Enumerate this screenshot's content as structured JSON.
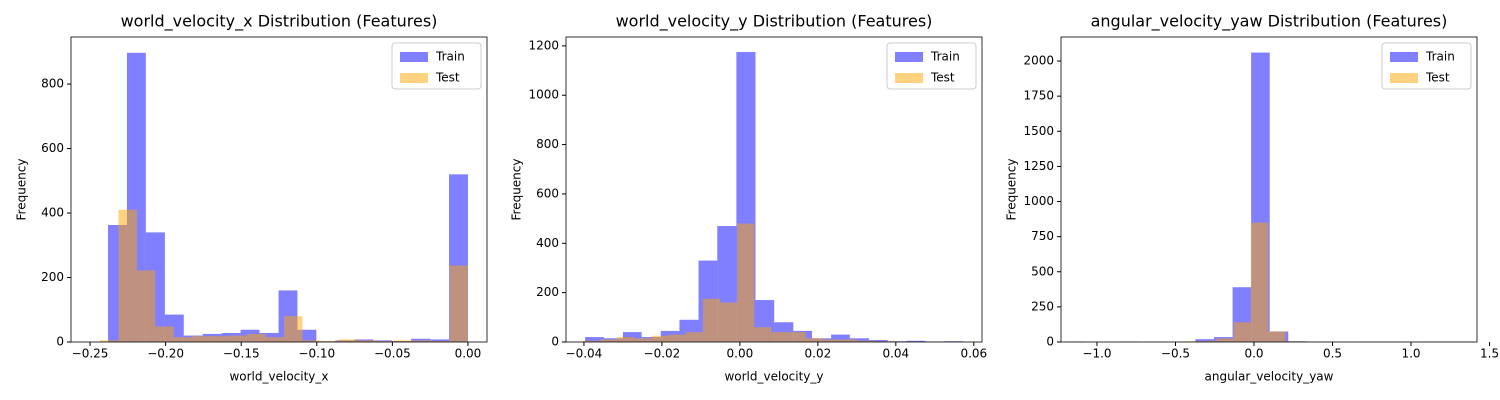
{
  "chart_data": [
    {
      "type": "histogram",
      "title": "world_velocity_x Distribution (Features)",
      "xlabel": "world_velocity_x",
      "ylabel": "Frequency",
      "xlim": [
        -0.2626,
        0.0126
      ],
      "ylim": [
        0,
        946
      ],
      "xticks": [
        {
          "value": -0.25,
          "label": "−0.25"
        },
        {
          "value": -0.2,
          "label": "−0.20"
        },
        {
          "value": -0.15,
          "label": "−0.15"
        },
        {
          "value": -0.1,
          "label": "−0.10"
        },
        {
          "value": -0.05,
          "label": "−0.05"
        },
        {
          "value": 0,
          "label": "0.00"
        }
      ],
      "yticks": [
        0,
        200,
        400,
        600,
        800
      ],
      "legend": "upper right",
      "alpha": 0.5,
      "series": [
        {
          "name": "Train",
          "color": "#0000ff",
          "bins": [
            -0.2381,
            -0.2256,
            -0.2131,
            -0.2005,
            -0.188,
            -0.1755,
            -0.1629,
            -0.1504,
            -0.1379,
            -0.1253,
            -0.1128,
            -0.1003,
            -0.0877,
            -0.0752,
            -0.0627,
            -0.0501,
            -0.0376,
            -0.0251,
            -0.0125,
            0.0
          ],
          "values": [
            363,
            897,
            340,
            85,
            20,
            25,
            28,
            38,
            28,
            160,
            38,
            2,
            5,
            8,
            5,
            3,
            10,
            8,
            520
          ]
        },
        {
          "name": "Test",
          "color": "#ffa500",
          "bins": [
            -0.2434,
            -0.2312,
            -0.219,
            -0.2069,
            -0.1947,
            -0.1825,
            -0.1704,
            -0.1582,
            -0.146,
            -0.1339,
            -0.1217,
            -0.1095,
            -0.0974,
            -0.0852,
            -0.073,
            -0.0609,
            -0.0487,
            -0.0365,
            -0.0243,
            -0.0122,
            0.0
          ],
          "values": [
            5,
            410,
            222,
            48,
            15,
            18,
            18,
            20,
            25,
            15,
            80,
            5,
            3,
            8,
            5,
            3,
            5,
            5,
            3,
            237
          ]
        }
      ]
    },
    {
      "type": "histogram",
      "title": "world_velocity_y Distribution (Features)",
      "xlabel": "world_velocity_y",
      "ylabel": "Frequency",
      "xlim": [
        -0.0446,
        0.0621
      ],
      "ylim": [
        0,
        1236
      ],
      "xticks": [
        {
          "value": -0.04,
          "label": "−0.04"
        },
        {
          "value": -0.02,
          "label": "−0.02"
        },
        {
          "value": 0,
          "label": "0.00"
        },
        {
          "value": 0.02,
          "label": "0.02"
        },
        {
          "value": 0.04,
          "label": "0.04"
        },
        {
          "value": 0.06,
          "label": "0.06"
        }
      ],
      "yticks": [
        0,
        200,
        400,
        600,
        800,
        1000,
        1200
      ],
      "legend": "upper right",
      "alpha": 0.5,
      "series": [
        {
          "name": "Train",
          "color": "#0000ff",
          "bins": [
            -0.0397,
            -0.0349,
            -0.03,
            -0.0252,
            -0.0203,
            -0.0155,
            -0.0106,
            -0.0058,
            -0.0009,
            0.004,
            0.0088,
            0.0137,
            0.0185,
            0.0234,
            0.0282,
            0.0331,
            0.0379,
            0.0428,
            0.0476,
            0.0525,
            0.0573
          ],
          "values": [
            20,
            15,
            40,
            20,
            45,
            90,
            330,
            470,
            1175,
            170,
            80,
            45,
            15,
            30,
            15,
            8,
            3,
            5,
            2,
            3
          ]
        },
        {
          "name": "Test",
          "color": "#ffa500",
          "bins": [
            -0.0403,
            -0.0359,
            -0.0315,
            -0.0271,
            -0.0227,
            -0.0183,
            -0.0139,
            -0.0095,
            -0.0051,
            -0.0007,
            0.0037,
            0.0081,
            0.0125,
            0.0169,
            0.0213,
            0.0257,
            0.0301,
            0.0345,
            0.0389,
            0.0433,
            0.0477
          ],
          "values": [
            5,
            10,
            20,
            15,
            25,
            30,
            40,
            175,
            160,
            480,
            60,
            40,
            40,
            15,
            10,
            10,
            5,
            3,
            2,
            1
          ]
        }
      ]
    },
    {
      "type": "histogram",
      "title": "angular_velocity_yaw Distribution (Features)",
      "xlabel": "angular_velocity_yaw",
      "ylabel": "Frequency",
      "xlim": [
        -1.229,
        1.42
      ],
      "ylim": [
        0,
        2171
      ],
      "xticks": [
        {
          "value": -1,
          "label": "−1.0"
        },
        {
          "value": -0.5,
          "label": "−0.5"
        },
        {
          "value": 0,
          "label": "0.0"
        },
        {
          "value": 0.5,
          "label": "0.5"
        },
        {
          "value": 1,
          "label": "1.0"
        },
        {
          "value": 1.5,
          "label": "1.5"
        }
      ],
      "yticks": [
        0,
        250,
        500,
        750,
        1000,
        1250,
        1500,
        1750,
        2000
      ],
      "legend": "upper right",
      "alpha": 0.5,
      "series": [
        {
          "name": "Train",
          "color": "#0000ff",
          "bins": [
            -1.2,
            -1.0818,
            -0.9636,
            -0.8455,
            -0.7273,
            -0.6091,
            -0.4909,
            -0.3727,
            -0.2545,
            -0.1364,
            -0.0182,
            0.1,
            0.2182,
            0.3364,
            0.4545,
            0.5727,
            0.6909,
            0.8091,
            0.9273,
            1.0455,
            1.1636,
            1.2818,
            1.4
          ],
          "values": [
            3,
            0,
            0,
            3,
            0,
            0,
            0,
            20,
            35,
            390,
            2060,
            75,
            5,
            2,
            0,
            0,
            2,
            2,
            0,
            3,
            3,
            3
          ]
        },
        {
          "name": "Test",
          "color": "#ffa500",
          "bins": [
            -0.79,
            -0.68,
            -0.57,
            -0.46,
            -0.35,
            -0.24,
            -0.13,
            -0.02,
            0.09,
            0.2,
            0.31,
            0.42,
            0.53,
            0.64,
            0.75,
            0.86,
            0.97,
            1.08,
            1.19,
            1.3,
            1.41
          ],
          "values": [
            1,
            2,
            2,
            5,
            8,
            25,
            140,
            850,
            75,
            5,
            3,
            2,
            1,
            1,
            1,
            1,
            0,
            0,
            1,
            1
          ]
        }
      ]
    }
  ]
}
